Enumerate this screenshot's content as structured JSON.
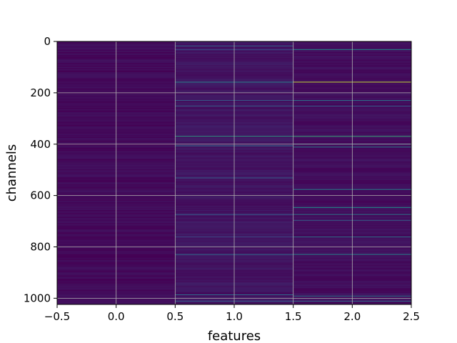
{
  "chart_data": {
    "type": "heatmap",
    "title": "",
    "xlabel": "features",
    "ylabel": "channels",
    "xlim": [
      -0.5,
      2.5
    ],
    "ylim": [
      1024,
      0
    ],
    "y_inverted": true,
    "grid": true,
    "colormap": "viridis",
    "x_tick_values": [
      -0.5,
      0.0,
      0.5,
      1.0,
      1.5,
      2.0,
      2.5
    ],
    "x_tick_labels": [
      "−0.5",
      "0.0",
      "0.5",
      "1.0",
      "1.5",
      "2.0",
      "2.5"
    ],
    "y_tick_values": [
      0,
      200,
      400,
      600,
      800,
      1000
    ],
    "y_tick_labels": [
      "0",
      "200",
      "400",
      "600",
      "800",
      "1000"
    ],
    "columns": [
      {
        "feature": 0,
        "base_value": 0.03,
        "highlights": []
      },
      {
        "feature": 1,
        "base_value": 0.06,
        "highlights": [
          {
            "channel": 16,
            "value": 0.35
          },
          {
            "channel": 30,
            "value": 0.25
          },
          {
            "channel": 157,
            "value": 0.45
          },
          {
            "channel": 228,
            "value": 0.3
          },
          {
            "channel": 250,
            "value": 0.3
          },
          {
            "channel": 368,
            "value": 0.55
          },
          {
            "channel": 405,
            "value": 0.35
          },
          {
            "channel": 530,
            "value": 0.3
          },
          {
            "channel": 672,
            "value": 0.3
          },
          {
            "channel": 760,
            "value": 0.25
          },
          {
            "channel": 828,
            "value": 0.35
          },
          {
            "channel": 985,
            "value": 0.35
          },
          {
            "channel": 1010,
            "value": 0.3
          }
        ]
      },
      {
        "feature": 2,
        "base_value": 0.04,
        "highlights": [
          {
            "channel": 30,
            "value": 0.5
          },
          {
            "channel": 157,
            "value": 0.9
          },
          {
            "channel": 228,
            "value": 0.4
          },
          {
            "channel": 250,
            "value": 0.3
          },
          {
            "channel": 368,
            "value": 0.6
          },
          {
            "channel": 398,
            "value": 0.35
          },
          {
            "channel": 410,
            "value": 0.4
          },
          {
            "channel": 575,
            "value": 0.45
          },
          {
            "channel": 645,
            "value": 0.5
          },
          {
            "channel": 672,
            "value": 0.4
          },
          {
            "channel": 695,
            "value": 0.3
          },
          {
            "channel": 760,
            "value": 0.4
          },
          {
            "channel": 828,
            "value": 0.45
          },
          {
            "channel": 990,
            "value": 0.4
          },
          {
            "channel": 1010,
            "value": 0.35
          }
        ]
      }
    ]
  }
}
